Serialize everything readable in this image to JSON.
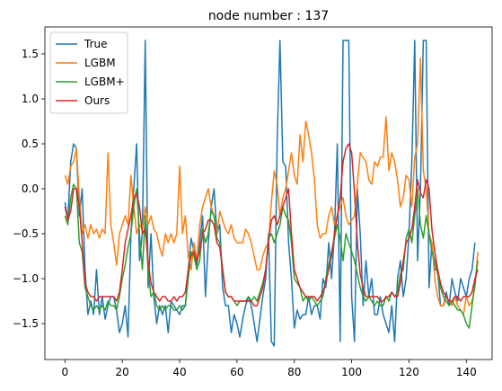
{
  "chart_data": {
    "type": "line",
    "title": "node number : 137",
    "xlabel": "",
    "ylabel": "",
    "xlim": [
      -7,
      149
    ],
    "ylim": [
      -1.9,
      1.8
    ],
    "xticks": [
      0,
      20,
      40,
      60,
      80,
      100,
      120,
      140
    ],
    "yticks": [
      -1.5,
      -1.0,
      -0.5,
      0.0,
      0.5,
      1.0,
      1.5
    ],
    "ytick_labels": [
      "−1.5",
      "−1.0",
      "−0.5",
      "0.0",
      "0.5",
      "1.0",
      "1.5"
    ],
    "grid": false,
    "legend_position": "top-left",
    "x_start": 0,
    "series": [
      {
        "name": "True",
        "color": "#1f77b4",
        "values": [
          -0.15,
          -0.35,
          0.3,
          0.5,
          0.45,
          -0.3,
          0.0,
          -0.9,
          -1.4,
          -1.25,
          -1.4,
          -0.9,
          -1.4,
          -1.2,
          -1.45,
          -1.3,
          -1.2,
          -1.2,
          -1.35,
          -1.6,
          -1.5,
          -1.3,
          -1.65,
          -0.5,
          0.0,
          0.5,
          -0.8,
          -0.5,
          1.65,
          -1.1,
          -0.5,
          -1.2,
          -1.5,
          -1.3,
          -1.4,
          -1.3,
          -1.6,
          -1.25,
          -1.3,
          -1.35,
          -1.4,
          -1.3,
          -1.3,
          -0.9,
          -0.55,
          -0.7,
          -0.85,
          -0.6,
          -0.3,
          -1.2,
          -0.6,
          -0.2,
          0.0,
          -0.5,
          -0.4,
          -1.1,
          -1.3,
          -1.3,
          -1.6,
          -1.4,
          -1.5,
          -1.65,
          -1.45,
          -1.3,
          -1.2,
          -1.3,
          -1.5,
          -1.7,
          -1.45,
          -1.2,
          -1.0,
          -0.5,
          -1.7,
          -1.75,
          0.5,
          1.65,
          0.3,
          0.25,
          -0.6,
          -1.0,
          -1.55,
          -1.35,
          -1.45,
          -1.4,
          -1.4,
          -1.2,
          -1.4,
          -1.3,
          -1.3,
          -1.45,
          -1.0,
          -1.1,
          -0.6,
          -1.0,
          -0.5,
          0.5,
          -1.7,
          1.65,
          1.65,
          1.65,
          -1.2,
          -1.7,
          0.0,
          -0.5,
          -1.3,
          -0.8,
          -1.2,
          -1.0,
          -1.4,
          -1.4,
          -1.2,
          -1.4,
          -1.5,
          -1.6,
          -1.3,
          -1.7,
          -1.0,
          -0.8,
          -1.2,
          -1.0,
          -0.5,
          0.3,
          1.65,
          -0.8,
          0.0,
          1.65,
          1.65,
          -1.1,
          -0.6,
          -0.9,
          -0.9,
          -1.3,
          -1.3,
          -1.15,
          -1.3,
          -1.0,
          -1.15,
          -1.25,
          -1.0,
          -1.1,
          -1.2,
          -1.0,
          -0.9,
          -0.6
        ]
      },
      {
        "name": "LGBM",
        "color": "#ff7f0e",
        "values": [
          0.15,
          0.05,
          0.25,
          0.3,
          0.45,
          -0.1,
          -0.5,
          -0.4,
          -0.55,
          -0.4,
          -0.5,
          -0.45,
          -0.55,
          -0.45,
          -0.5,
          0.4,
          -0.4,
          -0.6,
          -0.85,
          -0.5,
          -0.4,
          -0.3,
          -0.4,
          0.15,
          -0.2,
          -0.5,
          -0.4,
          -0.45,
          -0.2,
          -0.4,
          -0.3,
          -0.45,
          -0.5,
          -0.65,
          -0.75,
          -0.5,
          -0.6,
          -0.5,
          -0.6,
          -0.5,
          0.25,
          -0.5,
          -0.3,
          -0.75,
          -0.9,
          -0.6,
          -0.8,
          -0.4,
          -0.2,
          -0.1,
          0.0,
          -0.2,
          -0.3,
          -0.5,
          -0.25,
          -0.35,
          -0.45,
          -0.5,
          -0.4,
          -0.55,
          -0.6,
          -0.6,
          -0.6,
          -0.45,
          -0.5,
          -0.6,
          -0.75,
          -0.9,
          -0.9,
          -0.75,
          -0.65,
          -0.6,
          -0.15,
          0.2,
          0.05,
          -0.3,
          -0.1,
          0.0,
          0.2,
          0.4,
          0.15,
          0.05,
          0.6,
          0.3,
          0.75,
          0.6,
          0.4,
          0.1,
          -0.4,
          -0.55,
          -0.5,
          -0.5,
          -0.3,
          -0.2,
          -0.4,
          -0.3,
          -0.2,
          -0.1,
          -0.3,
          -0.4,
          -0.35,
          -0.3,
          0.05,
          0.4,
          0.35,
          0.3,
          0.1,
          0.05,
          0.3,
          0.25,
          0.35,
          0.35,
          0.8,
          0.2,
          0.4,
          0.3,
          0.1,
          -0.2,
          -0.1,
          0.15,
          0.1,
          -0.2,
          0.35,
          0.5,
          1.45,
          0.2,
          0.0,
          -0.5,
          -0.6,
          -1.0,
          -1.2,
          -1.3,
          -1.3,
          -1.2,
          -1.25,
          -1.3,
          -1.2,
          -1.3,
          -1.35,
          -1.4,
          -1.2,
          -1.3,
          -1.25,
          -1.1,
          -0.7
        ]
      },
      {
        "name": "LGBM+",
        "color": "#2ca02c",
        "values": [
          -0.3,
          -0.4,
          -0.1,
          0.05,
          0.0,
          -0.6,
          -0.7,
          -1.1,
          -1.2,
          -1.3,
          -1.35,
          -1.3,
          -1.35,
          -1.3,
          -1.35,
          -1.25,
          -1.3,
          -1.3,
          -1.35,
          -1.2,
          -1.0,
          -0.85,
          -0.65,
          -0.5,
          -0.2,
          0.0,
          -0.5,
          -0.9,
          -0.3,
          -0.9,
          -1.2,
          -1.15,
          -1.3,
          -1.35,
          -1.3,
          -1.35,
          -1.3,
          -1.3,
          -1.35,
          -1.35,
          -1.3,
          -1.35,
          -1.3,
          -1.0,
          -0.7,
          -0.75,
          -0.9,
          -0.8,
          -0.45,
          -0.6,
          -0.5,
          -0.25,
          -0.3,
          -0.55,
          -0.6,
          -0.9,
          -1.15,
          -1.2,
          -1.2,
          -1.25,
          -1.3,
          -1.25,
          -1.25,
          -1.25,
          -1.2,
          -1.25,
          -1.2,
          -1.25,
          -1.15,
          -1.05,
          -0.9,
          -0.55,
          -0.5,
          -0.6,
          -0.5,
          -0.4,
          -0.2,
          -0.3,
          -0.35,
          -0.6,
          -1.0,
          -1.05,
          -1.1,
          -1.25,
          -1.2,
          -1.25,
          -1.2,
          -1.25,
          -1.3,
          -1.25,
          -1.2,
          -1.0,
          -0.85,
          -0.7,
          -0.55,
          -0.4,
          -0.55,
          -0.8,
          -0.5,
          -0.6,
          -0.7,
          -0.8,
          -0.95,
          -1.1,
          -1.2,
          -1.25,
          -1.2,
          -1.25,
          -1.3,
          -1.25,
          -1.3,
          -1.3,
          -1.2,
          -1.25,
          -1.15,
          -1.2,
          -1.15,
          -0.95,
          -0.9,
          -0.55,
          -0.45,
          -0.6,
          -0.3,
          0.0,
          -0.4,
          -0.55,
          -0.3,
          -0.5,
          -0.7,
          -0.8,
          -0.95,
          -1.1,
          -1.2,
          -1.25,
          -1.3,
          -1.25,
          -1.3,
          -1.35,
          -1.35,
          -1.4,
          -1.5,
          -1.55,
          -1.3,
          -1.05,
          -0.8
        ]
      },
      {
        "name": "Ours",
        "color": "#d62728",
        "values": [
          -0.2,
          -0.35,
          -0.25,
          0.0,
          0.0,
          -0.2,
          -0.6,
          -1.05,
          -1.15,
          -1.2,
          -1.2,
          -1.25,
          -1.2,
          -1.2,
          -1.2,
          -1.2,
          -1.2,
          -1.2,
          -1.25,
          -1.15,
          -0.9,
          -0.6,
          -0.45,
          -0.3,
          -0.1,
          -0.05,
          -0.2,
          -0.5,
          -0.45,
          -0.8,
          -1.05,
          -1.15,
          -1.2,
          -1.25,
          -1.2,
          -1.2,
          -1.25,
          -1.25,
          -1.2,
          -1.25,
          -1.2,
          -1.2,
          -1.15,
          -0.9,
          -0.75,
          -0.7,
          -0.8,
          -0.7,
          -0.5,
          -0.45,
          -0.35,
          -0.35,
          -0.4,
          -0.6,
          -0.65,
          -0.9,
          -1.15,
          -1.2,
          -1.2,
          -1.25,
          -1.25,
          -1.25,
          -1.25,
          -1.25,
          -1.25,
          -1.25,
          -1.3,
          -1.3,
          -1.2,
          -1.1,
          -0.9,
          -0.6,
          -0.35,
          -0.3,
          -0.4,
          -0.3,
          -0.2,
          -0.1,
          0.0,
          -0.5,
          -0.9,
          -1.0,
          -1.1,
          -1.15,
          -1.2,
          -1.2,
          -1.2,
          -1.2,
          -1.25,
          -1.2,
          -1.15,
          -1.05,
          -0.9,
          -0.75,
          -0.5,
          -0.3,
          -0.1,
          0.3,
          0.45,
          0.5,
          0.4,
          -0.05,
          -0.6,
          -0.95,
          -1.1,
          -1.2,
          -1.2,
          -1.2,
          -1.2,
          -1.2,
          -1.25,
          -1.25,
          -1.2,
          -1.2,
          -1.15,
          -1.2,
          -1.2,
          -1.05,
          -0.8,
          -0.6,
          -0.55,
          -0.45,
          -0.2,
          0.1,
          -0.05,
          -0.1,
          0.1,
          0.0,
          -0.45,
          -0.7,
          -0.9,
          -1.05,
          -1.15,
          -1.2,
          -1.25,
          -1.25,
          -1.2,
          -1.2,
          -1.25,
          -1.2,
          -1.2,
          -1.2,
          -1.15,
          -1.0,
          -0.9
        ]
      }
    ]
  }
}
